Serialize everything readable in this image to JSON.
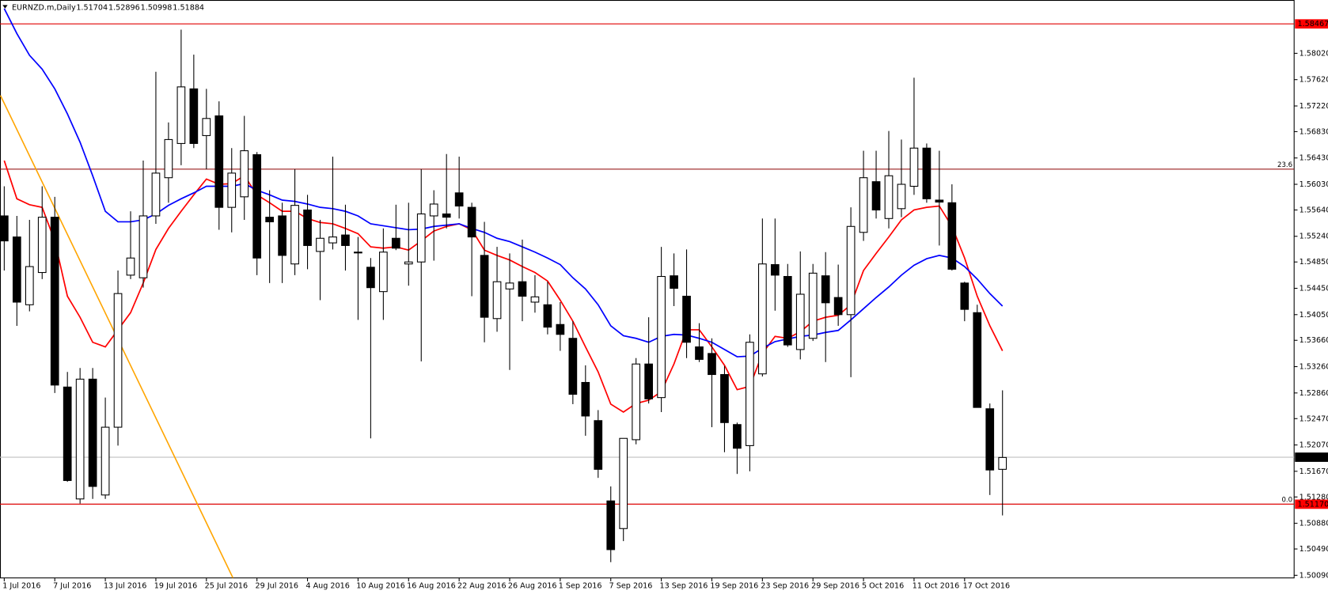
{
  "chart_data": {
    "type": "candlestick",
    "header": {
      "title": "EURNZD.m,Daily",
      "values": [
        1.51704,
        1.52896,
        1.50998,
        1.51884
      ]
    },
    "categories": [
      "1 Jul 2016",
      null,
      null,
      null,
      "7 Jul 2016",
      null,
      null,
      null,
      "13 Jul 2016",
      null,
      null,
      null,
      "19 Jul 2016",
      null,
      null,
      null,
      "25 Jul 2016",
      null,
      null,
      null,
      "29 Jul 2016",
      null,
      null,
      null,
      "4 Aug 2016",
      null,
      null,
      null,
      "10 Aug 2016",
      null,
      null,
      null,
      "16 Aug 2016",
      null,
      null,
      null,
      "22 Aug 2016",
      null,
      null,
      null,
      "26 Aug 2016",
      null,
      null,
      null,
      "1 Sep 2016",
      null,
      null,
      null,
      "7 Sep 2016",
      null,
      null,
      null,
      "13 Sep 2016",
      null,
      null,
      null,
      "19 Sep 2016",
      null,
      null,
      null,
      "23 Sep 2016",
      null,
      null,
      null,
      "29 Sep 2016",
      null,
      null,
      null,
      "5 Oct 2016",
      null,
      null,
      null,
      "11 Oct 2016",
      null,
      null,
      null,
      "17 Oct 2016",
      null,
      null,
      null
    ],
    "open": [
      1.5555,
      1.5523,
      1.542,
      1.5469,
      1.5553,
      1.5295,
      1.5125,
      1.5307,
      1.5131,
      1.5234,
      1.5465,
      1.5461,
      1.5555,
      1.5613,
      1.5665,
      1.5748,
      1.5677,
      1.5707,
      1.5568,
      1.5584,
      1.5648,
      1.5553,
      1.5555,
      1.5482,
      1.5564,
      1.5501,
      1.5514,
      1.5526,
      1.55,
      1.5477,
      1.544,
      1.5521,
      1.5482,
      1.5485,
      1.5555,
      1.5558,
      1.559,
      1.5568,
      1.5495,
      1.5399,
      1.5444,
      1.5455,
      1.5424,
      1.542,
      1.539,
      1.5369,
      1.5302,
      1.5244,
      1.5122,
      1.508,
      1.5215,
      1.533,
      1.5279,
      1.5464,
      1.5433,
      1.5356,
      1.5346,
      1.5314,
      1.5238,
      1.5206,
      1.5315,
      1.5481,
      1.5463,
      1.5352,
      1.5369,
      1.5464,
      1.5431,
      1.5405,
      1.553,
      1.5607,
      1.5551,
      1.5566,
      1.56,
      1.5658,
      1.5579,
      1.5575,
      1.5453,
      1.5408,
      1.5262,
      1.517
    ],
    "high": [
      1.56,
      1.5555,
      1.5549,
      1.56,
      1.5584,
      1.5318,
      1.5324,
      1.5324,
      1.5279,
      1.5472,
      1.5562,
      1.5639,
      1.5774,
      1.5697,
      1.5838,
      1.58,
      1.5748,
      1.5729,
      1.5658,
      1.5707,
      1.5652,
      1.5594,
      1.5575,
      1.5626,
      1.5587,
      1.5549,
      1.5645,
      1.5572,
      1.5523,
      1.5491,
      1.5536,
      1.5572,
      1.5575,
      1.5626,
      1.5594,
      1.5649,
      1.5645,
      1.5575,
      1.5546,
      1.5508,
      1.5498,
      1.5519,
      1.5465,
      1.5455,
      1.5424,
      1.5395,
      1.5328,
      1.526,
      1.5144,
      1.5217,
      1.5339,
      1.5401,
      1.5508,
      1.5498,
      1.5504,
      1.5392,
      1.5369,
      1.5327,
      1.5241,
      1.5375,
      1.5551,
      1.5551,
      1.5482,
      1.5501,
      1.5482,
      1.55,
      1.5481,
      1.5568,
      1.5654,
      1.5654,
      1.5684,
      1.5671,
      1.5765,
      1.5665,
      1.5654,
      1.5603,
      1.5455,
      1.542,
      1.527,
      1.529
    ],
    "low": [
      1.5472,
      1.5388,
      1.541,
      1.5459,
      1.5286,
      1.5151,
      1.5118,
      1.5125,
      1.5125,
      1.5206,
      1.5459,
      1.5446,
      1.5543,
      1.5575,
      1.5632,
      1.5658,
      1.5626,
      1.5534,
      1.553,
      1.5549,
      1.5465,
      1.5453,
      1.5453,
      1.5465,
      1.5474,
      1.5427,
      1.5504,
      1.5472,
      1.5397,
      1.5217,
      1.5397,
      1.5503,
      1.5449,
      1.5334,
      1.5487,
      1.5536,
      1.5551,
      1.5433,
      1.5363,
      1.5379,
      1.5321,
      1.5395,
      1.5408,
      1.5375,
      1.535,
      1.5269,
      1.5221,
      1.5157,
      1.5029,
      1.5061,
      1.5208,
      1.527,
      1.5257,
      1.5418,
      1.5339,
      1.5333,
      1.5234,
      1.5196,
      1.5163,
      1.5167,
      1.5311,
      1.5411,
      1.5356,
      1.5337,
      1.5365,
      1.5333,
      1.5388,
      1.531,
      1.5517,
      1.5551,
      1.5536,
      1.5553,
      1.5587,
      1.5575,
      1.551,
      1.5472,
      1.5395,
      1.5264,
      1.5131,
      1.51
    ],
    "close": [
      1.5517,
      1.5424,
      1.5478,
      1.5553,
      1.5298,
      1.5153,
      1.5307,
      1.5144,
      1.5234,
      1.5437,
      1.5491,
      1.5555,
      1.562,
      1.5671,
      1.5751,
      1.5665,
      1.5703,
      1.5568,
      1.562,
      1.5654,
      1.5491,
      1.5546,
      1.5495,
      1.5571,
      1.551,
      1.5521,
      1.5523,
      1.551,
      1.5499,
      1.5446,
      1.55,
      1.5506,
      1.5485,
      1.5558,
      1.5573,
      1.5553,
      1.557,
      1.5523,
      1.5401,
      1.5455,
      1.5453,
      1.5433,
      1.5432,
      1.5386,
      1.5375,
      1.5284,
      1.5251,
      1.517,
      1.5048,
      1.5217,
      1.533,
      1.5277,
      1.5463,
      1.5445,
      1.5363,
      1.5337,
      1.5314,
      1.5241,
      1.5202,
      1.5363,
      1.5482,
      1.5465,
      1.5359,
      1.5436,
      1.5468,
      1.5423,
      1.5405,
      1.5539,
      1.5613,
      1.5564,
      1.5616,
      1.5603,
      1.5658,
      1.5581,
      1.5576,
      1.5474,
      1.5413,
      1.5264,
      1.5169,
      1.5188
    ],
    "indicators": [
      {
        "color": "#ff0000",
        "values": [
          1.5639,
          1.5581,
          1.5572,
          1.5568,
          1.5517,
          1.5433,
          1.5401,
          1.5363,
          1.5356,
          1.5382,
          1.5408,
          1.5453,
          1.5504,
          1.5536,
          1.5562,
          1.5587,
          1.5611,
          1.5603,
          1.5604,
          1.5616,
          1.5587,
          1.5575,
          1.5562,
          1.5562,
          1.5551,
          1.5545,
          1.5543,
          1.5536,
          1.5528,
          1.5508,
          1.5506,
          1.5508,
          1.5503,
          1.5517,
          1.5532,
          1.5539,
          1.5543,
          1.5534,
          1.5503,
          1.5495,
          1.5488,
          1.5478,
          1.5469,
          1.5456,
          1.5427,
          1.5395,
          1.5356,
          1.5318,
          1.5269,
          1.5257,
          1.527,
          1.5275,
          1.5288,
          1.533,
          1.5382,
          1.5382,
          1.5356,
          1.5328,
          1.5291,
          1.5296,
          1.5346,
          1.5372,
          1.5369,
          1.5379,
          1.5395,
          1.5401,
          1.5404,
          1.542,
          1.5472,
          1.5498,
          1.5523,
          1.5549,
          1.5564,
          1.5568,
          1.557,
          1.5539,
          1.5491,
          1.5433,
          1.5388,
          1.535
        ]
      },
      {
        "color": "#0000ff",
        "values": [
          1.587,
          1.5832,
          1.5799,
          1.5778,
          1.5748,
          1.571,
          1.5667,
          1.5616,
          1.5562,
          1.5546,
          1.5546,
          1.5549,
          1.5558,
          1.5571,
          1.5581,
          1.559,
          1.56,
          1.56,
          1.56,
          1.5604,
          1.5594,
          1.5587,
          1.5579,
          1.5577,
          1.5573,
          1.5568,
          1.5566,
          1.5562,
          1.5555,
          1.5543,
          1.554,
          1.5537,
          1.5534,
          1.5535,
          1.5539,
          1.5541,
          1.5543,
          1.5536,
          1.553,
          1.5521,
          1.5516,
          1.5508,
          1.55,
          1.5491,
          1.5481,
          1.5461,
          1.5444,
          1.542,
          1.5388,
          1.5373,
          1.5369,
          1.5363,
          1.5372,
          1.5375,
          1.5374,
          1.5369,
          1.5363,
          1.5352,
          1.5341,
          1.5342,
          1.5354,
          1.5364,
          1.5368,
          1.5372,
          1.5374,
          1.5378,
          1.5381,
          1.5397,
          1.5414,
          1.5431,
          1.5447,
          1.5465,
          1.548,
          1.549,
          1.5495,
          1.5491,
          1.5478,
          1.5459,
          1.5437,
          1.5418
        ]
      }
    ],
    "trendline": {
      "color": "#ffa500",
      "x": [
        -0.3,
        18.1
      ],
      "values": [
        1.5738,
        1.5005
      ]
    },
    "hlines": [
      {
        "value": 1.58467,
        "color": "#e00000",
        "badge": "#ff0000"
      },
      {
        "value": 1.51884,
        "color": "#c0c0c0",
        "badge": "#000000"
      },
      {
        "value": 1.5117,
        "label": "1.51170",
        "color": "#e00000",
        "badge": "#ff0000"
      }
    ],
    "levels": [
      {
        "value": 1.5626,
        "label": "23.6",
        "color": "#8b0000"
      },
      {
        "value": 1.5117,
        "label": "0.0",
        "color": "#8b0000"
      }
    ],
    "ylim": [
      1.5005,
      1.5883
    ],
    "yticks": [
      {
        "value": 1.5802,
        "label": "1.58020"
      },
      {
        "value": 1.5762,
        "label": "1.57620"
      },
      {
        "value": 1.5722,
        "label": "1.57220"
      },
      {
        "value": 1.5683,
        "label": "1.56830"
      },
      {
        "value": 1.5643,
        "label": "1.56430"
      },
      {
        "value": 1.5603,
        "label": "1.56030"
      },
      {
        "value": 1.5564,
        "label": "1.55640"
      },
      {
        "value": 1.5524,
        "label": "1.55240"
      },
      {
        "value": 1.5485,
        "label": "1.54850"
      },
      {
        "value": 1.5445,
        "label": "1.54450"
      },
      {
        "value": 1.5405,
        "label": "1.54050"
      },
      {
        "value": 1.5366,
        "label": "1.53660"
      },
      {
        "value": 1.5326,
        "label": "1.53260"
      },
      {
        "value": 1.5286,
        "label": "1.52860"
      },
      {
        "value": 1.5247,
        "label": "1.52470"
      },
      {
        "value": 1.5207,
        "label": "1.52070"
      },
      {
        "value": 1.5167,
        "label": "1.51670"
      },
      {
        "value": 1.5128,
        "label": "1.51280"
      },
      {
        "value": 1.5088,
        "label": "1.50880"
      },
      {
        "value": 1.5049,
        "label": "1.50490"
      },
      {
        "value": 1.5009,
        "label": "1.50090"
      }
    ],
    "grid": false
  }
}
